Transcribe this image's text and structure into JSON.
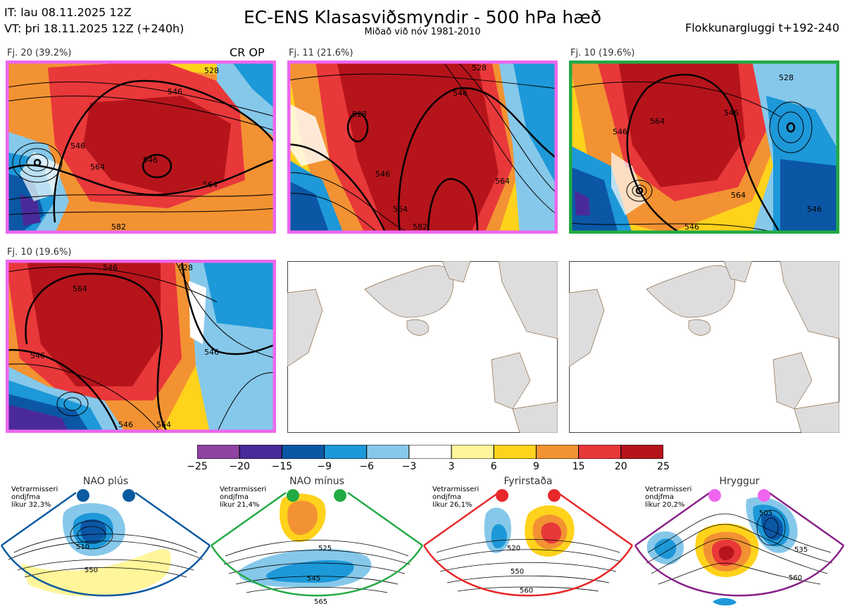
{
  "header": {
    "it_line": "IT: lau 08.11.2025 12Z",
    "vt_line": "VT: þri 18.11.2025 12Z  (+240h)",
    "title": "EC-ENS Klasasviðsmyndir - 500 hPa hæð",
    "subtitle": "Miðað við nóv 1981-2010",
    "window": "Flokkunargluggi t+192-240"
  },
  "panels": [
    {
      "label": "Fj. 20 (39.2%)",
      "tag": "CR OP",
      "frame_color": "#ee66ee",
      "contours": [
        "528",
        "546",
        "546",
        "564",
        "546",
        "564",
        "582"
      ]
    },
    {
      "label": "Fj. 11 (21.6%)",
      "frame_color": "#ee66ee",
      "contours": [
        "528",
        "528",
        "546",
        "546",
        "564",
        "564",
        "582"
      ]
    },
    {
      "label": "Fj. 10 (19.6%)",
      "frame_color": "#22aa44",
      "contours": [
        "528",
        "546",
        "564",
        "546",
        "564",
        "546",
        "546"
      ]
    },
    {
      "label": "Fj. 10 (19.6%)",
      "frame_color": "#ee66ee",
      "contours": [
        "564",
        "546",
        "528",
        "546",
        "546",
        "564",
        "546"
      ]
    }
  ],
  "colorbar": {
    "colors": [
      "#8e44a0",
      "#4a2a9a",
      "#0b57a6",
      "#1d98d8",
      "#86c8ea",
      "#ffffff",
      "#fff59a",
      "#ffd21c",
      "#f39232",
      "#e8383a",
      "#b5141b"
    ],
    "ticks": [
      "−25",
      "−20",
      "−15",
      "−9",
      "−6",
      "−3",
      "3",
      "6",
      "9",
      "15",
      "20",
      "25"
    ]
  },
  "regimes": [
    {
      "name": "NAO plús",
      "note": [
        "Vetrarmisseri",
        "ondjfma",
        "líkur 32,3%"
      ],
      "frame_color": "#0b5aa0",
      "dot_color": "#0b5aa0",
      "contours": [
        "510",
        "550"
      ]
    },
    {
      "name": "NAO mínus",
      "note": [
        "Vetrarmisseri",
        "ondjfma",
        "líkur 21,4%"
      ],
      "frame_color": "#22aa44",
      "dot_color": "#22aa44",
      "contours": [
        "525",
        "545",
        "565"
      ]
    },
    {
      "name": "Fyrirstaða",
      "note": [
        "Vetrarmisseri",
        "ondjfma",
        "líkur 26,1%"
      ],
      "frame_color": "#e8282a",
      "dot_color": "#e8282a",
      "contours": [
        "520",
        "550",
        "560"
      ]
    },
    {
      "name": "Hryggur",
      "note": [
        "Vetrarmisseri",
        "ondjfma",
        "líkur 20,2%"
      ],
      "frame_color": "#882288",
      "dot_color": "#ee66ee",
      "contours": [
        "505",
        "535",
        "560"
      ]
    }
  ]
}
